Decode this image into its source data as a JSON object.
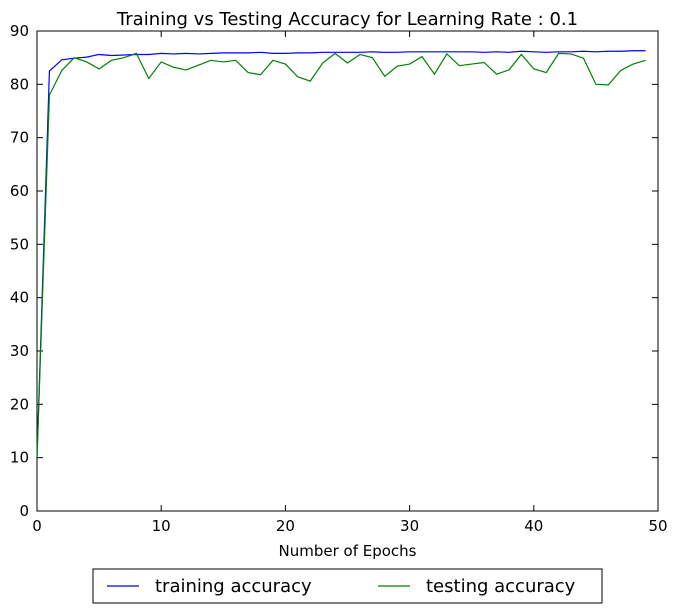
{
  "chart_data": {
    "type": "line",
    "title": "Training vs Testing Accuracy for Learning Rate : 0.1",
    "xlabel": "Number of Epochs",
    "ylabel": "",
    "xlim": [
      0,
      50
    ],
    "ylim": [
      0,
      90
    ],
    "xticks": [
      0,
      10,
      20,
      30,
      40,
      50
    ],
    "yticks": [
      0,
      10,
      20,
      30,
      40,
      50,
      60,
      70,
      80,
      90
    ],
    "grid": false,
    "legend_position": "bottom-center",
    "x": [
      0,
      1,
      2,
      3,
      4,
      5,
      6,
      7,
      8,
      9,
      10,
      11,
      12,
      13,
      14,
      15,
      16,
      17,
      18,
      19,
      20,
      21,
      22,
      23,
      24,
      25,
      26,
      27,
      28,
      29,
      30,
      31,
      32,
      33,
      34,
      35,
      36,
      37,
      38,
      39,
      40,
      41,
      42,
      43,
      44,
      45,
      46,
      47,
      48,
      49
    ],
    "series": [
      {
        "name": "training accuracy",
        "color": "#0000ff",
        "values": [
          10.0,
          82.5,
          84.6,
          84.9,
          85.1,
          85.6,
          85.4,
          85.5,
          85.6,
          85.6,
          85.8,
          85.7,
          85.8,
          85.7,
          85.8,
          85.9,
          85.9,
          85.9,
          86.0,
          85.8,
          85.8,
          85.9,
          85.9,
          86.0,
          86.0,
          86.0,
          86.0,
          86.1,
          86.0,
          86.0,
          86.1,
          86.1,
          86.1,
          86.1,
          86.1,
          86.1,
          86.0,
          86.1,
          86.0,
          86.2,
          86.1,
          86.0,
          86.1,
          86.1,
          86.2,
          86.1,
          86.2,
          86.2,
          86.3,
          86.3
        ]
      },
      {
        "name": "testing accuracy",
        "color": "#008000",
        "values": [
          10.0,
          78.0,
          82.6,
          85.0,
          84.2,
          82.9,
          84.5,
          85.0,
          85.8,
          81.1,
          84.2,
          83.2,
          82.7,
          83.6,
          84.5,
          84.2,
          84.5,
          82.2,
          81.8,
          84.5,
          83.8,
          81.4,
          80.6,
          84.0,
          85.8,
          84.0,
          85.6,
          85.0,
          81.5,
          83.4,
          83.8,
          85.2,
          81.9,
          85.7,
          83.5,
          83.8,
          84.1,
          81.9,
          82.7,
          85.6,
          82.9,
          82.2,
          85.8,
          85.7,
          84.9,
          80.0,
          79.9,
          82.6,
          83.8,
          84.5
        ]
      }
    ]
  }
}
